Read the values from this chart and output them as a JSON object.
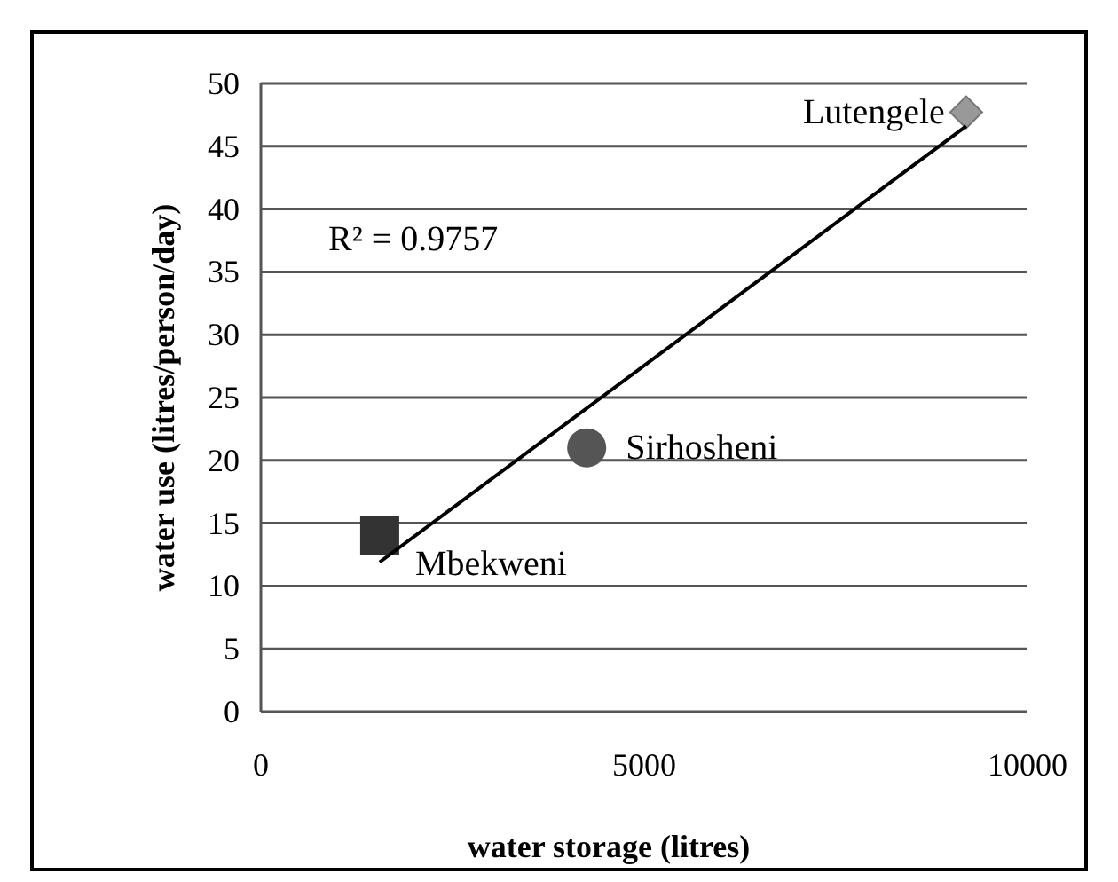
{
  "chart_data": {
    "type": "scatter",
    "xlabel": "water storage (litres)",
    "ylabel": "water use (litres/person/day)",
    "xlim": [
      0,
      10000
    ],
    "xticks": [
      0,
      5000,
      10000
    ],
    "ylim": [
      0,
      50
    ],
    "yticks": [
      0,
      5,
      10,
      15,
      20,
      25,
      30,
      35,
      40,
      45,
      50
    ],
    "grid": "y",
    "annotations": [
      "R² = 0.9757"
    ],
    "series": [
      {
        "name": "Mbekweni",
        "marker": "square",
        "color": "#333333",
        "x": [
          1550
        ],
        "values": [
          14
        ]
      },
      {
        "name": "Sirhosheni",
        "marker": "circle",
        "color": "#555555",
        "x": [
          4250
        ],
        "values": [
          21
        ]
      },
      {
        "name": "Lutengele",
        "marker": "diamond",
        "color": "#999999",
        "x": [
          9200
        ],
        "values": [
          47.7
        ]
      },
      {
        "type": "line",
        "marker": "none",
        "line_style": "solid",
        "color": "#000000",
        "x": [
          1550,
          9200
        ],
        "values": [
          11.9,
          46.6
        ]
      }
    ]
  }
}
